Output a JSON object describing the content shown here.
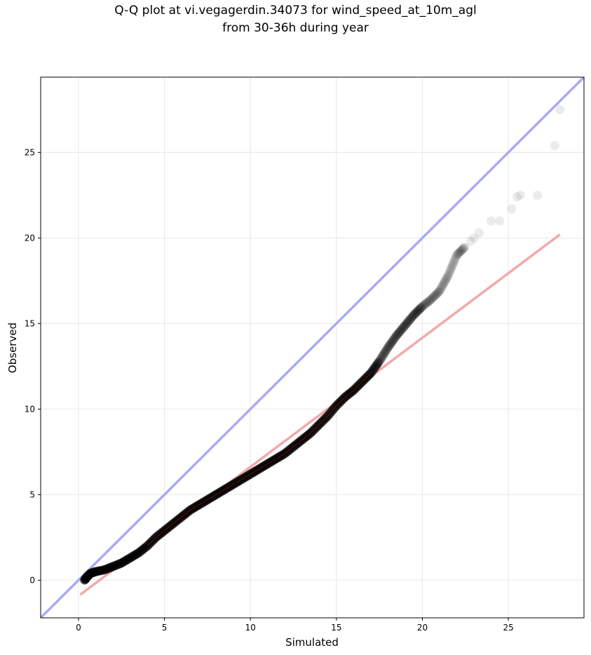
{
  "chart_data": {
    "type": "scatter",
    "title_line1": "Q-Q plot at vi.vegagerdin.34073 for wind_speed_at_10m_agl",
    "title_line2": "from 30-36h during year",
    "xlabel": "Simulated",
    "ylabel": "Observed",
    "xlim": [
      -2.2,
      29.4
    ],
    "ylim": [
      -2.2,
      29.4
    ],
    "xticks": [
      0,
      5,
      10,
      15,
      20,
      25
    ],
    "yticks": [
      0,
      5,
      10,
      15,
      20,
      25
    ],
    "grid": true,
    "identity_line": {
      "name": "1:1 line",
      "color": "#aaaaf5"
    },
    "fit_line": {
      "name": "linear fit",
      "color": "#f5a8a8",
      "x": [
        0.1,
        28.0
      ],
      "y": [
        -0.85,
        20.2
      ]
    },
    "points_color": "#000000",
    "quantile_curve": [
      [
        0.35,
        0.0
      ],
      [
        0.5,
        0.2
      ],
      [
        0.7,
        0.4
      ],
      [
        1.0,
        0.5
      ],
      [
        1.5,
        0.6
      ],
      [
        2.0,
        0.8
      ],
      [
        2.5,
        1.0
      ],
      [
        3.0,
        1.3
      ],
      [
        3.5,
        1.6
      ],
      [
        4.0,
        2.0
      ],
      [
        4.5,
        2.5
      ],
      [
        5.0,
        2.9
      ],
      [
        5.5,
        3.3
      ],
      [
        6.0,
        3.7
      ],
      [
        6.5,
        4.1
      ],
      [
        7.0,
        4.4
      ],
      [
        7.5,
        4.7
      ],
      [
        8.0,
        5.0
      ],
      [
        8.5,
        5.3
      ],
      [
        9.0,
        5.6
      ],
      [
        9.5,
        5.9
      ],
      [
        10.0,
        6.2
      ],
      [
        10.5,
        6.5
      ],
      [
        11.0,
        6.8
      ],
      [
        11.5,
        7.1
      ],
      [
        12.0,
        7.4
      ],
      [
        12.5,
        7.8
      ],
      [
        13.0,
        8.2
      ],
      [
        13.5,
        8.6
      ],
      [
        14.0,
        9.1
      ],
      [
        14.5,
        9.6
      ],
      [
        15.0,
        10.2
      ],
      [
        15.5,
        10.7
      ],
      [
        16.0,
        11.1
      ],
      [
        16.5,
        11.6
      ],
      [
        17.0,
        12.1
      ],
      [
        17.5,
        12.8
      ],
      [
        18.0,
        13.6
      ],
      [
        18.5,
        14.3
      ],
      [
        19.0,
        14.9
      ],
      [
        19.5,
        15.5
      ],
      [
        20.0,
        16.0
      ],
      [
        20.5,
        16.4
      ],
      [
        21.0,
        16.9
      ],
      [
        21.5,
        17.8
      ],
      [
        22.0,
        19.0
      ],
      [
        22.5,
        19.5
      ]
    ],
    "tail_points": [
      [
        22.8,
        19.8
      ],
      [
        23.0,
        20.0
      ],
      [
        23.3,
        20.3
      ],
      [
        24.0,
        21.0
      ],
      [
        24.5,
        21.0
      ],
      [
        25.2,
        21.7
      ],
      [
        25.5,
        22.4
      ],
      [
        25.7,
        22.5
      ],
      [
        26.7,
        22.5
      ],
      [
        27.7,
        25.4
      ],
      [
        28.0,
        27.5
      ]
    ]
  }
}
